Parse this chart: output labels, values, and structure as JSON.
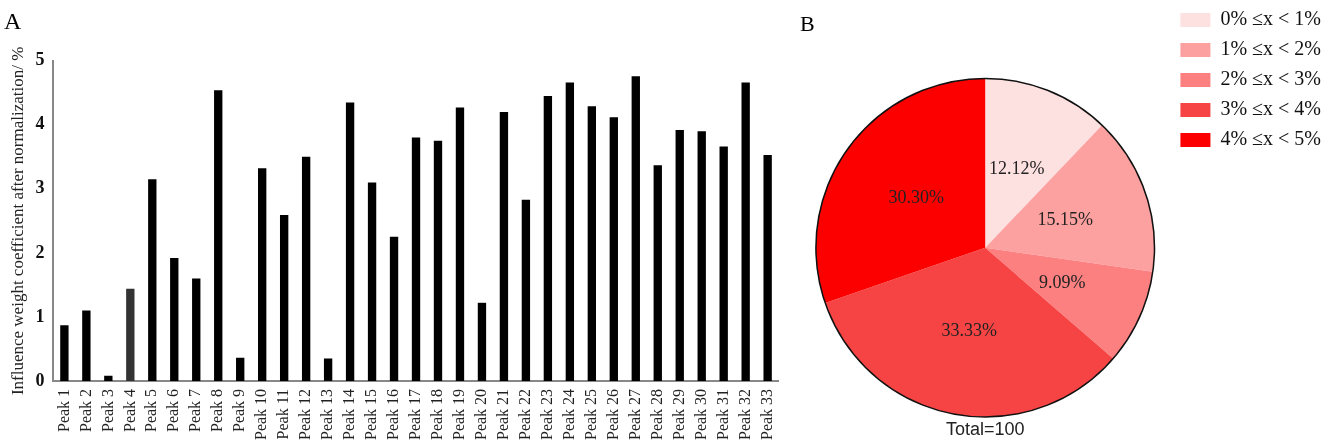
{
  "chart_data": [
    {
      "type": "bar",
      "title": "A",
      "ylabel": "Influence weight coefficient after normalization/ %",
      "categories": [
        "Peak 1",
        "Peak 2",
        "Peak 3",
        "Peak 4",
        "Peak 5",
        "Peak 6",
        "Peak 7",
        "Peak 8",
        "Peak 9",
        "Peak 10",
        "Peak 11",
        "Peak 12",
        "Peak 13",
        "Peak 14",
        "Peak 15",
        "Peak 16",
        "Peak 17",
        "Peak 18",
        "Peak 19",
        "Peak 20",
        "Peak 21",
        "Peak 22",
        "Peak 23",
        "Peak 24",
        "Peak 25",
        "Peak 26",
        "Peak 27",
        "Peak 28",
        "Peak 29",
        "Peak 30",
        "Peak 31",
        "Peak 32",
        "Peak 33"
      ],
      "values": [
        0.87,
        1.1,
        0.08,
        1.44,
        3.15,
        1.92,
        1.6,
        4.54,
        0.36,
        3.32,
        2.59,
        3.5,
        0.35,
        4.35,
        3.1,
        2.25,
        3.8,
        3.75,
        4.27,
        1.22,
        4.2,
        2.83,
        4.45,
        4.66,
        4.29,
        4.12,
        4.76,
        3.37,
        3.92,
        3.9,
        3.66,
        4.66,
        3.53
      ],
      "colors": [
        "#000000",
        "#000000",
        "#000000",
        "#333333",
        "#000000",
        "#000000",
        "#000000",
        "#000000",
        "#000000",
        "#000000",
        "#000000",
        "#000000",
        "#000000",
        "#000000",
        "#000000",
        "#000000",
        "#000000",
        "#000000",
        "#000000",
        "#000000",
        "#000000",
        "#000000",
        "#000000",
        "#000000",
        "#000000",
        "#000000",
        "#000000",
        "#000000",
        "#000000",
        "#000000",
        "#000000",
        "#000000",
        "#000000"
      ],
      "ylim": [
        0,
        5
      ],
      "yticks": [
        0,
        1,
        2,
        3,
        4,
        5
      ],
      "grid": false,
      "legend": false
    },
    {
      "type": "pie",
      "title": "B",
      "categories": [
        "0% ≤x < 1%",
        "1% ≤x < 2%",
        "2% ≤x < 3%",
        "3% ≤x < 4%",
        "4% ≤x < 5%"
      ],
      "values": [
        12.12,
        15.15,
        9.09,
        33.33,
        30.3
      ],
      "value_labels": [
        "12.12%",
        "15.15%",
        "9.09%",
        "33.33%",
        "30.30%"
      ],
      "colors": [
        "#fde0e0",
        "#fca0a0",
        "#fc8080",
        "#f64444",
        "#fc0000"
      ],
      "legend": "right",
      "annotations": [
        "Total=100"
      ]
    }
  ]
}
